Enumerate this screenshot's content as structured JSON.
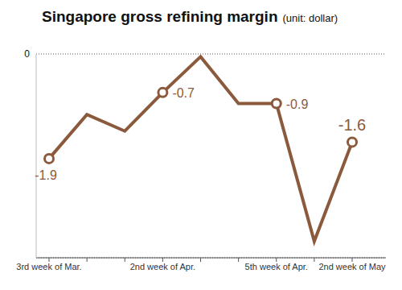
{
  "chart_data": {
    "type": "line",
    "title": "Singapore gross refining margin",
    "subtitle": "(unit: dollar)",
    "categories": [
      "3rd week of Mar.",
      null,
      null,
      "2nd week of Apr.",
      null,
      null,
      "5th week of Apr.",
      null,
      "2nd week of May"
    ],
    "values": [
      -1.9,
      -1.1,
      -1.4,
      -0.7,
      -0.05,
      -0.9,
      -0.9,
      -3.4,
      -1.6
    ],
    "value_labels": [
      "-1.9",
      null,
      null,
      "-0.7",
      null,
      null,
      "-0.9",
      null,
      "-1.6"
    ],
    "data_labels": true,
    "color": "#8b5a3c",
    "marker": "circle",
    "ylim": [
      -3.7,
      0
    ],
    "yticks": [
      0
    ],
    "grid": true
  }
}
